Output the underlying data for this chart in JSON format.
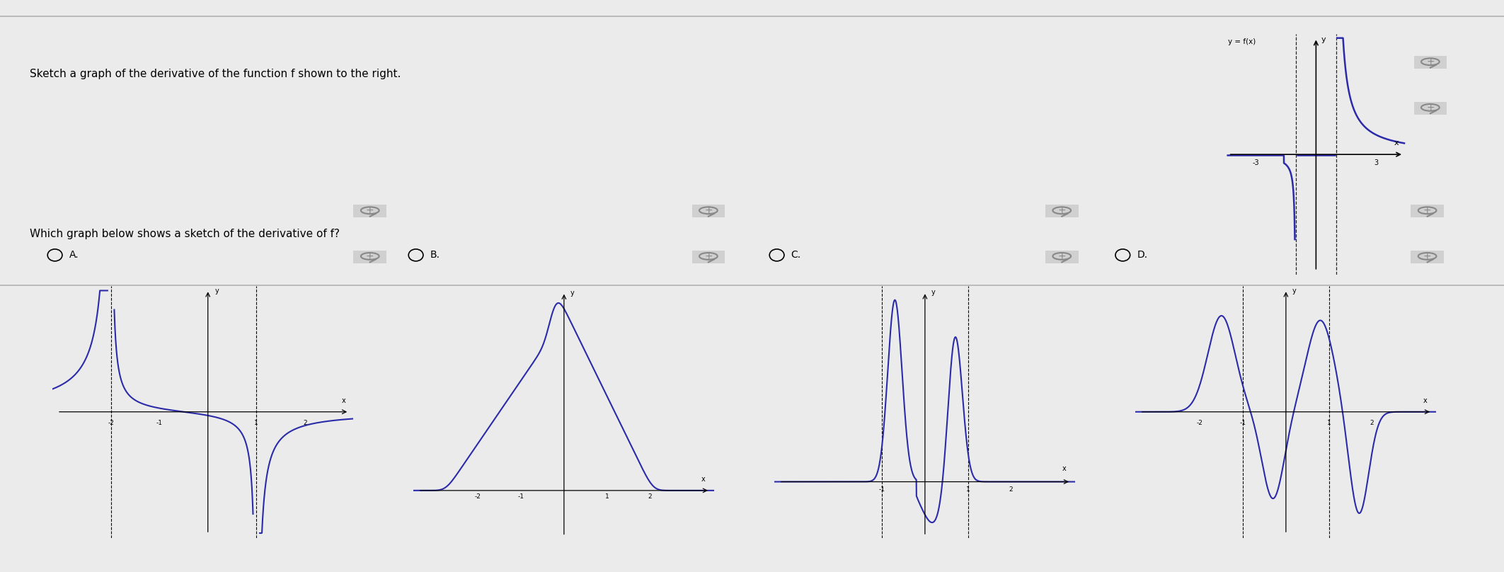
{
  "bg_color": "#ebebeb",
  "curve_color": "#2b2baa",
  "axis_color": "#000000",
  "title": "Sketch a graph of the derivative of the function f shown to the right.",
  "question": "Which graph below shows a sketch of the derivative of f?",
  "options": [
    "A.",
    "B.",
    "C.",
    "D."
  ],
  "main_xlim": [
    -4.5,
    4.5
  ],
  "main_ylim": [
    -6.5,
    6.5
  ],
  "main_xticks": [
    -3,
    3
  ],
  "main_asymptotes": [
    -1,
    1
  ]
}
